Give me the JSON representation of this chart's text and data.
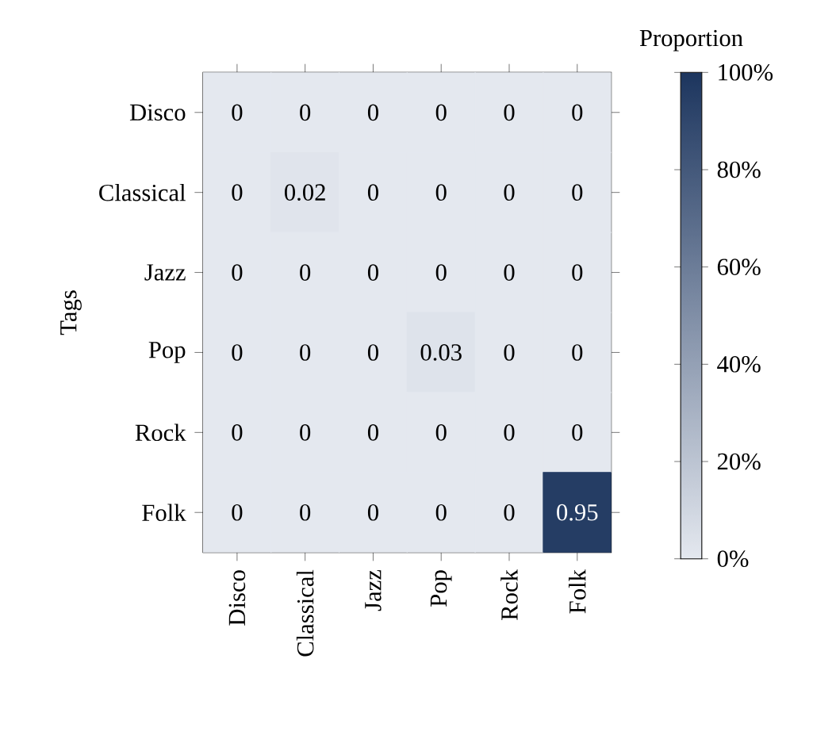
{
  "chart_data": {
    "type": "heatmap",
    "ylabel": "Tags",
    "clabel": "Proportion",
    "categories": [
      "Disco",
      "Classical",
      "Jazz",
      "Pop",
      "Rock",
      "Folk"
    ],
    "y_categories": [
      "Disco",
      "Classical",
      "Jazz",
      "Pop",
      "Rock",
      "Folk"
    ],
    "cells": [
      [
        0,
        0,
        0,
        0,
        0,
        0
      ],
      [
        0,
        0.02,
        0,
        0,
        0,
        0
      ],
      [
        0,
        0,
        0,
        0,
        0,
        0
      ],
      [
        0,
        0,
        0,
        0.03,
        0,
        0
      ],
      [
        0,
        0,
        0,
        0,
        0,
        0
      ],
      [
        0,
        0,
        0,
        0,
        0,
        0.95
      ]
    ],
    "data_labels": true,
    "clim": [
      0,
      1
    ],
    "cticks": [
      {
        "value": 0,
        "label": "0%"
      },
      {
        "value": 0.2,
        "label": "20%"
      },
      {
        "value": 0.4,
        "label": "40%"
      },
      {
        "value": 0.6,
        "label": "60%"
      },
      {
        "value": 0.8,
        "label": "80%"
      },
      {
        "value": 1,
        "label": "100%"
      }
    ]
  }
}
